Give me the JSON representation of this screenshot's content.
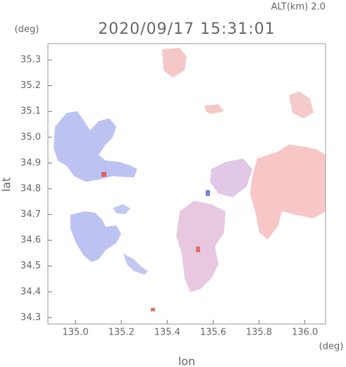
{
  "header": {
    "altitude": "ALT(km) 2.0",
    "title": "2020/09/17 15:31:01"
  },
  "axes": {
    "y_unit": "(deg)",
    "x_unit": "(deg)",
    "y_label": "lat",
    "x_label": "lon",
    "xlim": [
      134.88,
      136.09
    ],
    "ylim": [
      34.275,
      35.363
    ],
    "xticks": [
      {
        "value": 135,
        "label": "135.0"
      },
      135.2,
      135.4,
      135.6,
      135.8,
      {
        "value": 136,
        "label": "136.0"
      }
    ],
    "yticks": [
      34.3,
      34.4,
      34.5,
      34.6,
      34.7,
      34.8,
      34.9,
      {
        "value": 35,
        "label": "35.0"
      },
      35.1,
      35.2,
      35.3
    ]
  }
}
